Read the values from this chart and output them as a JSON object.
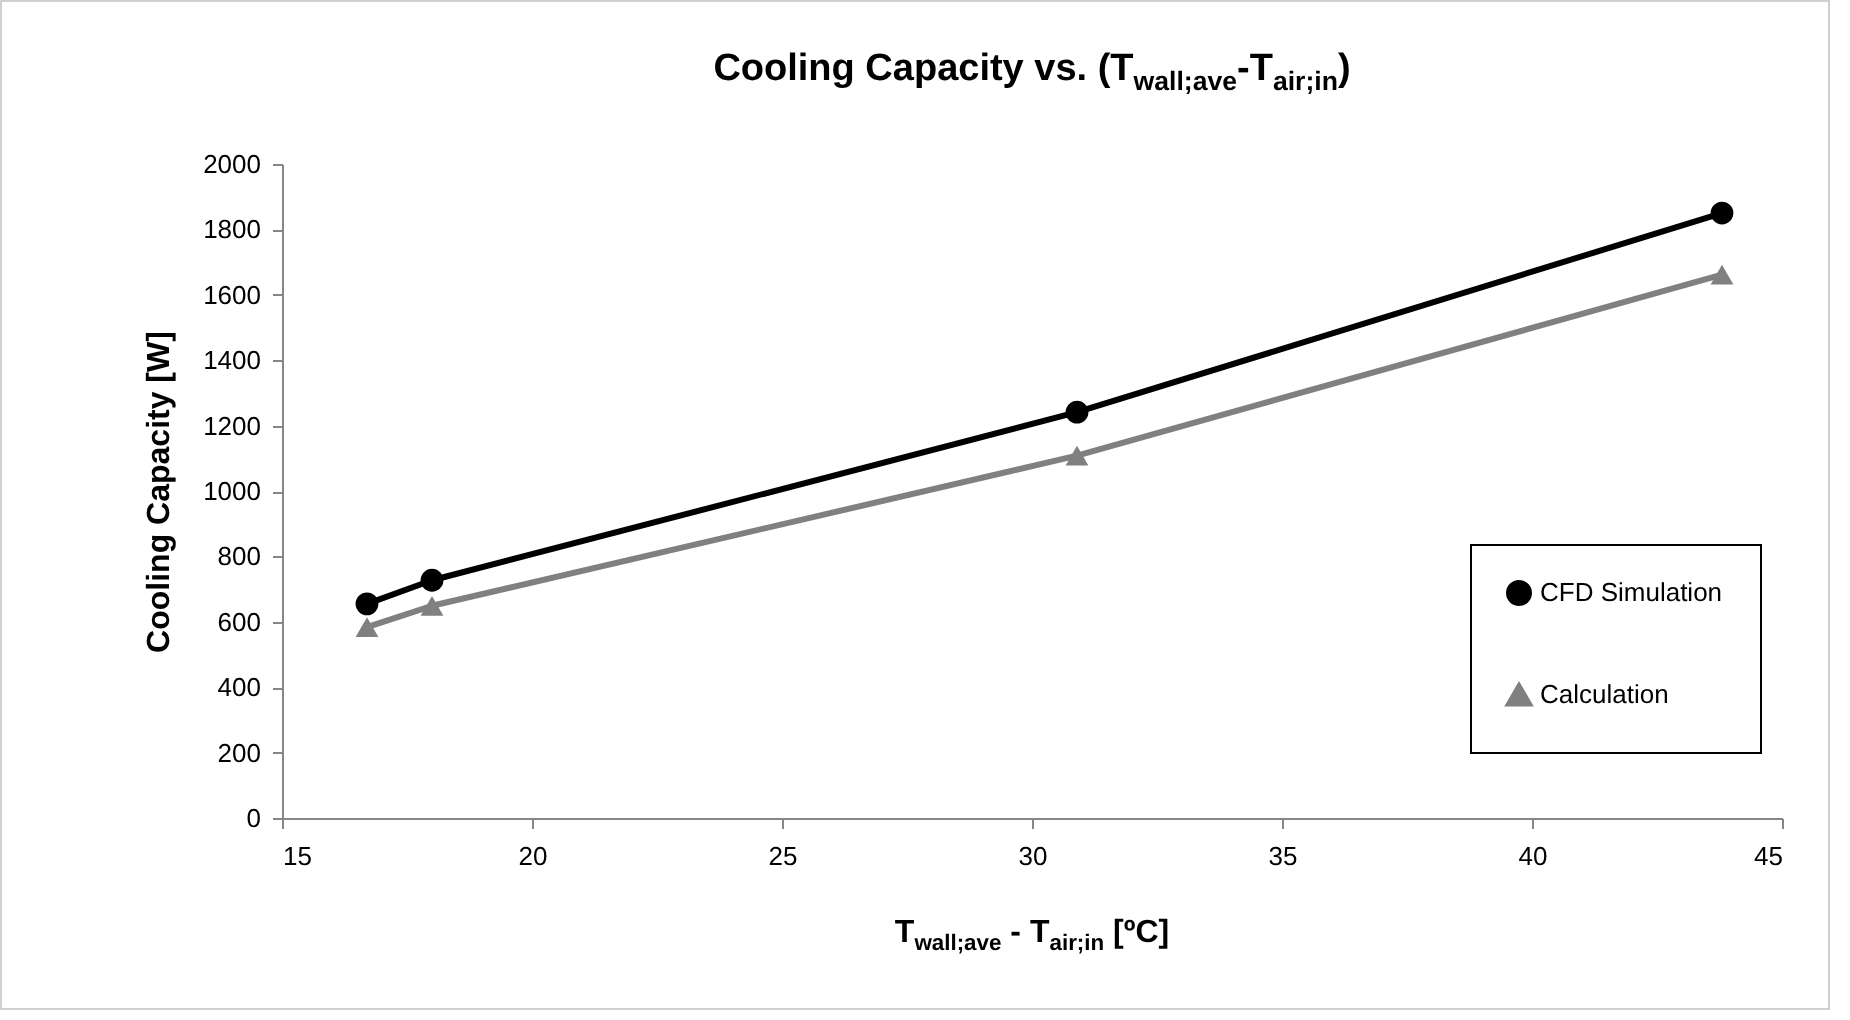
{
  "chart_data": {
    "type": "line",
    "title": "Cooling Capacity vs. (T$_{wall;ave}$-T$_{air;in}$)",
    "xlabel": "T$_{wall;ave}$ - T$_{air;in}$ [ºC]",
    "ylabel": "Cooling Capacity [W]",
    "x": [
      16.7,
      18.0,
      30.9,
      43.8
    ],
    "series": [
      {
        "name": "CFD Simulation",
        "color": "#000000",
        "marker": "circle",
        "values": [
          655,
          727,
          1241,
          1850
        ]
      },
      {
        "name": "Calculation",
        "color": "#808080",
        "marker": "triangle",
        "values": [
          584,
          649,
          1108,
          1662
        ]
      }
    ],
    "xlim": [
      15,
      45
    ],
    "xticks": [
      15,
      20,
      25,
      30,
      35,
      40,
      45
    ],
    "ylim": [
      0,
      2000
    ],
    "yticks": [
      0,
      200,
      400,
      600,
      800,
      1000,
      1200,
      1400,
      1600,
      1800,
      2000
    ],
    "grid": false,
    "legend": "right",
    "line_style": "solid"
  }
}
